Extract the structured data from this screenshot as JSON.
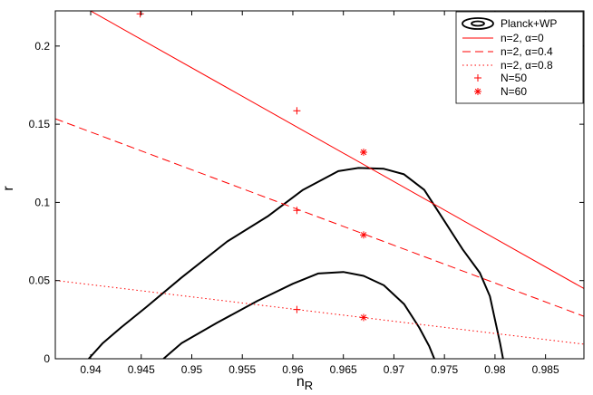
{
  "chart_data": {
    "type": "line",
    "title": "",
    "xlabel": "n",
    "xlabel_sub": "R",
    "ylabel": "r",
    "xlim": [
      0.9365,
      0.9888
    ],
    "ylim": [
      0,
      0.2225
    ],
    "x_ticks": [
      "0.94",
      "0.945",
      "0.95",
      "0.955",
      "0.96",
      "0.965",
      "0.97",
      "0.975",
      "0.98",
      "0.985"
    ],
    "x_tick_values": [
      0.94,
      0.945,
      0.95,
      0.955,
      0.96,
      0.965,
      0.97,
      0.975,
      0.98,
      0.985
    ],
    "y_ticks": [
      "0",
      "0.05",
      "0.1",
      "0.15",
      "0.2"
    ],
    "y_tick_values": [
      0,
      0.05,
      0.1,
      0.15,
      0.2
    ],
    "legend_position": "top-right",
    "grid": false,
    "colors": {
      "models": "#ff0000",
      "contour": "#000000"
    },
    "series": [
      {
        "name": "n=2, α=0",
        "style": "solid",
        "x": [
          0.9365,
          0.9888
        ],
        "y": [
          0.2352,
          0.0449
        ]
      },
      {
        "name": "n=2, α=0.4",
        "style": "dashed",
        "x": [
          0.9365,
          0.9888
        ],
        "y": [
          0.1535,
          0.0272
        ]
      },
      {
        "name": "n=2, α=0.8",
        "style": "dotted",
        "x": [
          0.9365,
          0.9888
        ],
        "y": [
          0.0501,
          0.0093
        ]
      }
    ],
    "markers": [
      {
        "name": "N=50",
        "symbol": "+",
        "x": [
          0.9449,
          0.9604,
          0.9604,
          0.9604
        ],
        "y": [
          0.2206,
          0.1586,
          0.0949,
          0.0315
        ]
      },
      {
        "name": "N=60",
        "symbol": "*",
        "x": [
          0.967,
          0.967,
          0.967
        ],
        "y": [
          0.1321,
          0.0792,
          0.0264
        ]
      }
    ],
    "contours": {
      "name": "Planck+WP",
      "levels": [
        {
          "label": "outer",
          "points": [
            [
              0.9398,
              0
            ],
            [
              0.9412,
              0.01
            ],
            [
              0.943,
              0.02
            ],
            [
              0.9455,
              0.033
            ],
            [
              0.949,
              0.052
            ],
            [
              0.9535,
              0.075
            ],
            [
              0.9575,
              0.091
            ],
            [
              0.961,
              0.108
            ],
            [
              0.9645,
              0.12
            ],
            [
              0.9665,
              0.122
            ],
            [
              0.969,
              0.1215
            ],
            [
              0.971,
              0.118
            ],
            [
              0.973,
              0.108
            ],
            [
              0.975,
              0.088
            ],
            [
              0.9768,
              0.07
            ],
            [
              0.9785,
              0.055
            ],
            [
              0.9795,
              0.04
            ],
            [
              0.98,
              0.025
            ],
            [
              0.9805,
              0.01
            ],
            [
              0.9808,
              0
            ]
          ]
        },
        {
          "label": "inner",
          "points": [
            [
              0.9472,
              0
            ],
            [
              0.949,
              0.01
            ],
            [
              0.9525,
              0.023
            ],
            [
              0.9565,
              0.037
            ],
            [
              0.96,
              0.048
            ],
            [
              0.9625,
              0.0545
            ],
            [
              0.965,
              0.0555
            ],
            [
              0.967,
              0.053
            ],
            [
              0.969,
              0.047
            ],
            [
              0.971,
              0.035
            ],
            [
              0.9725,
              0.02
            ],
            [
              0.9735,
              0.008
            ],
            [
              0.974,
              0
            ]
          ]
        }
      ]
    },
    "legend": [
      "Planck+WP",
      "n=2, α=0",
      "n=2, α=0.4",
      "n=2, α=0.8",
      "N=50",
      "N=60"
    ]
  }
}
